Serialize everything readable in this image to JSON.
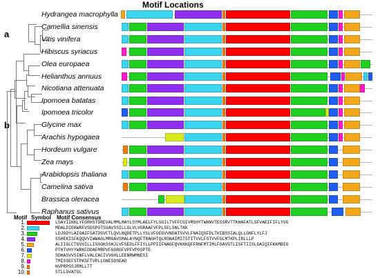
{
  "title": "Motif Locations",
  "clade_labels": [
    "a",
    "b"
  ],
  "motif_colors": {
    "1": "#ff0000",
    "2": "#3bd5f0",
    "3": "#20d020",
    "4": "#8f2ff0",
    "5": "#f2a81a",
    "6": "#1f5ef0",
    "7": "#d6ea1e",
    "8": "#ff19c8",
    "9": "#f07d10"
  },
  "species": [
    {
      "name": "Hydrangea macrophylla"
    },
    {
      "name": "Camellia sinensis"
    },
    {
      "name": "Vitis vinifera"
    },
    {
      "name": "Hibiscus syriacus"
    },
    {
      "name": "Olea europaea"
    },
    {
      "name": "Helianthus annuus"
    },
    {
      "name": "Nicotiana attenuata"
    },
    {
      "name": "Ipomoea batatas"
    },
    {
      "name": "Ipomoea tricolor"
    },
    {
      "name": "Glycine max"
    },
    {
      "name": "Arachis hypogaea"
    },
    {
      "name": "Hordeum vulgare"
    },
    {
      "name": "Zea mays"
    },
    {
      "name": "Arabidopsis thaliana"
    },
    {
      "name": "Camelina sativa"
    },
    {
      "name": "Brassica oleracea"
    },
    {
      "name": "Raphanus sativus"
    }
  ],
  "legend": {
    "header_motif": "Motif",
    "header_symbol": "Symbol",
    "header_consensus": "Motif Consensus",
    "items": [
      {
        "num": "1.",
        "motif": "1",
        "consensus": "LSAYIIKKLYFGRHSTDREVALMMLMAYLSYMLAELFYLSGILTVFFCGIVMSHYTWHNVTESSRVTTKHAFATLSFVAEIFIFLYVG"
      },
      {
        "num": "2.",
        "motif": "2",
        "consensus": "MDALDIEKWRFVSDSPGTSVAVSSILLGLVLVGRAAFVFPLSFLSNLTKK"
      },
      {
        "num": "3.",
        "motif": "3",
        "consensus": "LDJGDYLAIGAIFSATDSVCTLQVLNQDETPLLYSLVFGEGVVNDATSVVLFNAIQSFDLTHIBSSIALQLLGNFLYLFJ"
      },
      {
        "num": "4.",
        "motif": "4",
        "consensus": "SSHEKISFKQQVVIWWAGLMRGAVSMALAYNQFTRAGHTQLRGNAIMITSTITVVLFSTVVFGLMTKPLIRLLLP"
      },
      {
        "num": "5.",
        "motif": "5",
        "consensus": "ALIIGLCTGVVILLISGGKSSHJLVFSEDLFFIYLLPPIIFNAGFQVKKKQFFRNFMTIMLFGAVGTLISFTIISLGAIQIFKKMBIG"
      },
      {
        "num": "6.",
        "motif": "6",
        "consensus": "PTHTVHYYWRKFDDAFMRPVFGGRGFVPFVPGSPTE"
      },
      {
        "num": "7.",
        "motif": "7",
        "consensus": "SDHASVVSINFLVALCACIVVGHLLEENRWMNESI"
      },
      {
        "num": "8.",
        "motif": "8",
        "consensus": "TMISSEFSTPKSFTVPLLGNESDSEAD"
      },
      {
        "num": "9.",
        "motif": "9",
        "consensus": "NVPRPSSJRMLLTT"
      },
      {
        "num": "10.",
        "motif": "9",
        "consensus": "STLLGVATGL"
      }
    ]
  }
}
